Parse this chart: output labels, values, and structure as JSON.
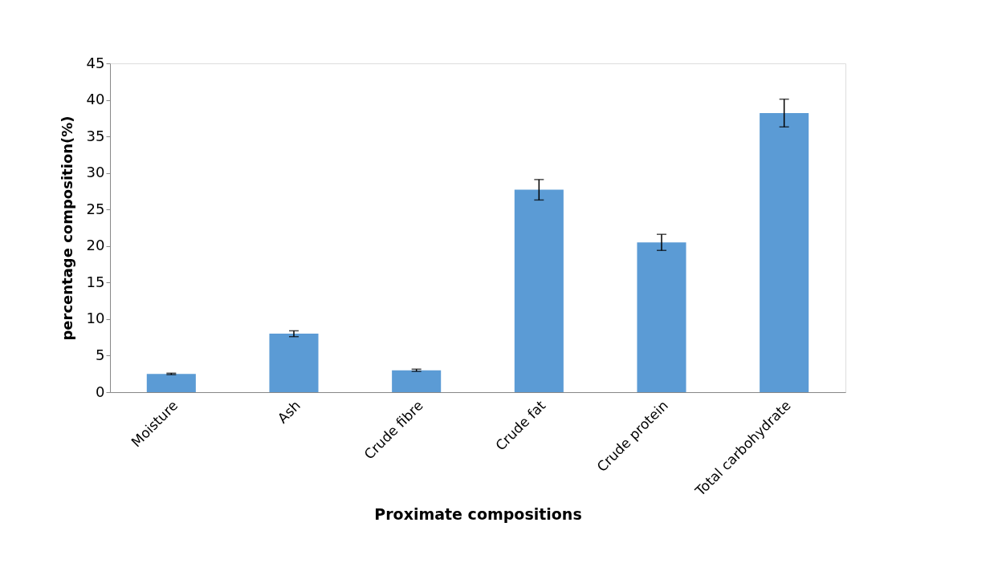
{
  "chart_data": {
    "type": "bar",
    "xlabel": "Proximate compositions",
    "ylabel": "percentage composition(%)",
    "categories": [
      "Moisture",
      "Ash",
      "Crude fibre",
      "Crude fat",
      "Crude protein",
      "Total carbohydrate"
    ],
    "values": [
      2.5,
      8.0,
      3.0,
      27.7,
      20.5,
      38.2
    ],
    "errors": [
      0.1,
      0.4,
      0.15,
      1.4,
      1.1,
      1.9
    ],
    "color": "#5b9bd5",
    "ylim": [
      0,
      45
    ],
    "yticks": [
      0,
      5,
      10,
      15,
      20,
      25,
      30,
      35,
      40,
      45
    ],
    "grid": false
  }
}
